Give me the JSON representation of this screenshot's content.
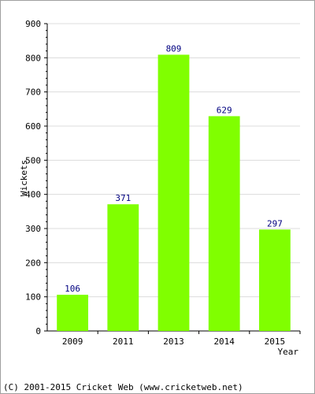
{
  "chart_data": {
    "type": "bar",
    "categories": [
      "2009",
      "2011",
      "2013",
      "2014",
      "2015"
    ],
    "values": [
      106,
      371,
      809,
      629,
      297
    ],
    "data_labels": [
      "106",
      "371",
      "809",
      "629",
      "297"
    ],
    "xlabel": "Year",
    "ylabel": "Wickets",
    "ylim": [
      0,
      900
    ],
    "yticks": [
      0,
      100,
      200,
      300,
      400,
      500,
      600,
      700,
      800,
      900
    ],
    "grid": true,
    "bar_color": "#80ff00",
    "label_color": "#000080"
  },
  "footer": {
    "copyright": "(C) 2001-2015 Cricket Web (www.cricketweb.net)"
  }
}
